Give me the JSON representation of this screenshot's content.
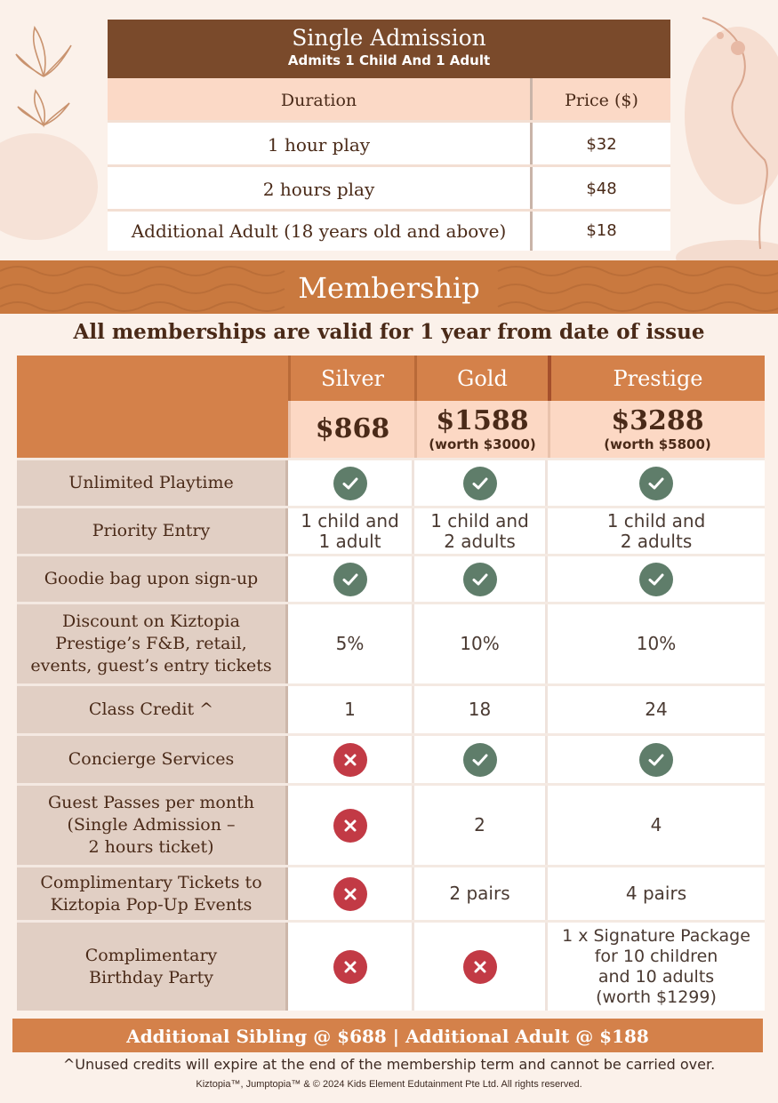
{
  "single_admission": {
    "title": "Single Admission",
    "subtitle": "Admits 1 Child And 1 Adult",
    "header": {
      "duration": "Duration",
      "price": "Price ($)"
    },
    "rows": [
      {
        "duration": "1 hour play",
        "price": "$32"
      },
      {
        "duration": "2 hours play",
        "price": "$48"
      },
      {
        "duration": "Additional Adult (18 years old and above)",
        "price": "$18"
      }
    ]
  },
  "membership": {
    "title": "Membership",
    "validity": "All memberships are valid for 1 year from date of issue",
    "tiers": [
      {
        "name": "Silver",
        "price": "$868",
        "worth": ""
      },
      {
        "name": "Gold",
        "price": "$1588",
        "worth": "(worth $3000)"
      },
      {
        "name": "Prestige",
        "price": "$3288",
        "worth": "(worth $5800)"
      }
    ],
    "rows": [
      {
        "feature": "Unlimited Playtime",
        "values": [
          "check",
          "check",
          "check"
        ]
      },
      {
        "feature": "Priority Entry",
        "values": [
          "1 child and\n1 adult",
          "1 child and\n2 adults",
          "1 child and\n2 adults"
        ]
      },
      {
        "feature": "Goodie bag upon sign-up",
        "values": [
          "check",
          "check",
          "check"
        ]
      },
      {
        "feature": "Discount on Kiztopia\nPrestige’s F&B, retail,\nevents, guest’s entry tickets",
        "values": [
          "5%",
          "10%",
          "10%"
        ]
      },
      {
        "feature": "Class Credit ^",
        "values": [
          "1",
          "18",
          "24"
        ]
      },
      {
        "feature": "Concierge Services",
        "values": [
          "cross",
          "check",
          "check"
        ]
      },
      {
        "feature": "Guest Passes per month\n(Single Admission –\n2 hours ticket)",
        "values": [
          "cross",
          "2",
          "4"
        ]
      },
      {
        "feature": "Complimentary Tickets to\nKiztopia Pop-Up Events",
        "values": [
          "cross",
          "2 pairs",
          "4 pairs"
        ]
      },
      {
        "feature": "Complimentary\nBirthday Party",
        "values": [
          "cross",
          "cross",
          "1 x Signature Package\nfor 10 children\nand 10 adults\n(worth $1299)"
        ]
      }
    ],
    "additional": "Additional Sibling @ $688 | Additional Adult @ $188",
    "note": "^Unused credits will expire at the end of the membership term and cannot be carried over.",
    "copyright": "Kiztopia™, Jumptopia™ & © 2024 Kids Element Edutainment Pte Ltd. All rights reserved."
  },
  "colors": {
    "brown_header": "#7a4a2b",
    "orange": "#d4814a",
    "band": "#c9793f",
    "peach": "#fcd8c4",
    "feature_bg": "#e1cfc4",
    "check_green": "#5f7d6a",
    "cross_red": "#c23a45"
  }
}
